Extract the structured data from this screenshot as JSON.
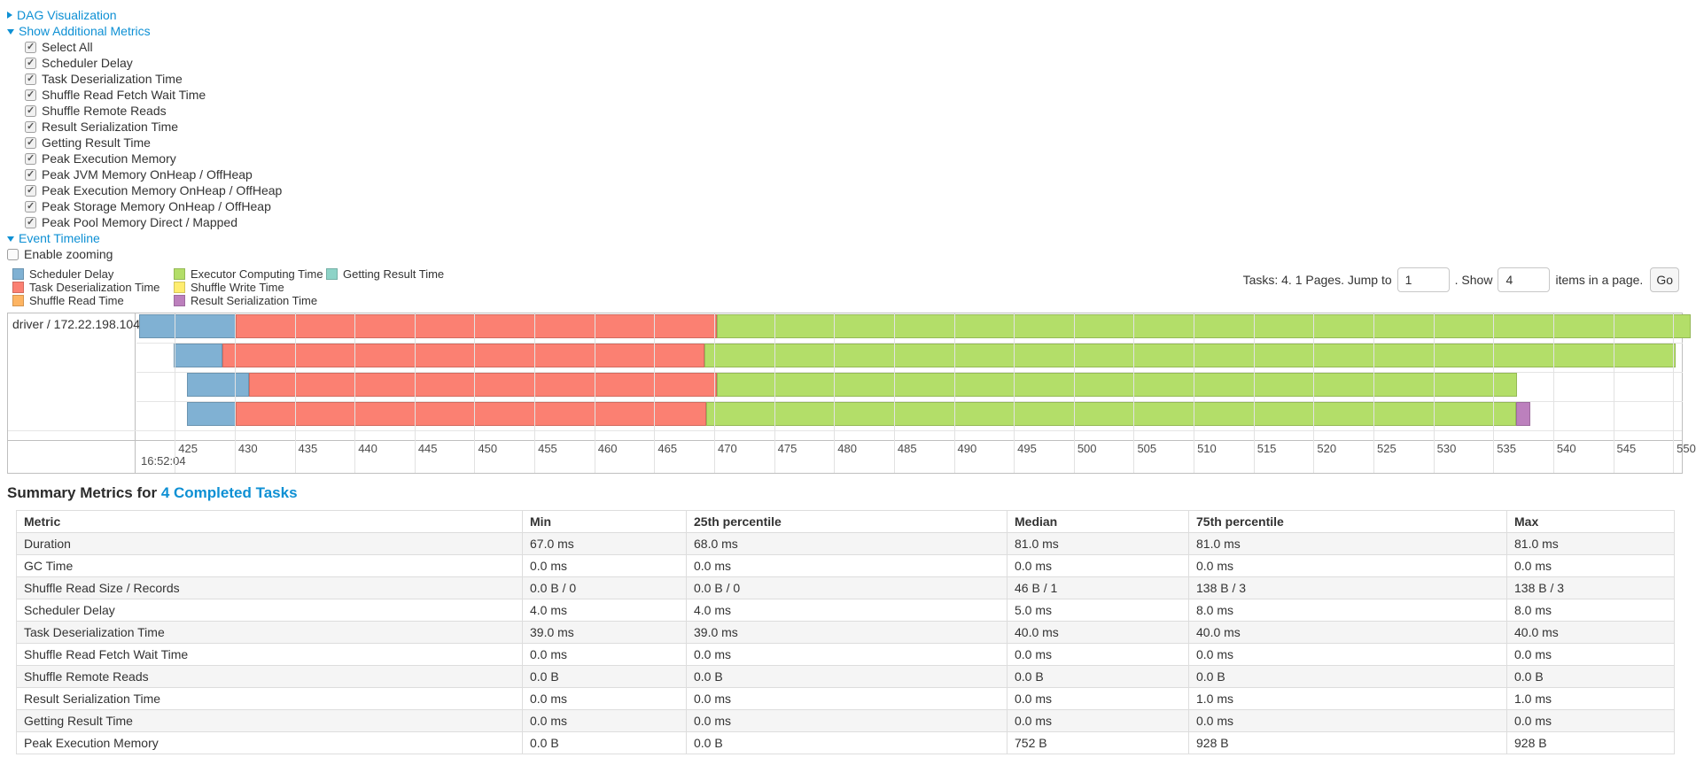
{
  "colors": {
    "link": "#0e90d4",
    "panel_border": "#bfbfbf",
    "grid_minor": "#e2e2e2",
    "axis_text": "#4d4d4d",
    "metric_colors": {
      "scheduler_delay": {
        "label": "Scheduler Delay",
        "fill": "#80B1D3",
        "stroke": "#6B94B0"
      },
      "task_deserialization": {
        "label": "Task Deserialization Time",
        "fill": "#FB8072",
        "stroke": "#D26B5F"
      },
      "shuffle_read": {
        "label": "Shuffle Read Time",
        "fill": "#FDB462",
        "stroke": "#D39651"
      },
      "executor_computing": {
        "label": "Executor Computing Time",
        "fill": "#B3DE69",
        "stroke": "#95B957"
      },
      "shuffle_write": {
        "label": "Shuffle Write Time",
        "fill": "#FFED6F",
        "stroke": "#D5C65C"
      },
      "result_serialization": {
        "label": "Result Serialization Time",
        "fill": "#BC80BD",
        "stroke": "#9D6B9E"
      },
      "getting_result": {
        "label": "Getting Result Time",
        "fill": "#8DD3C7",
        "stroke": "#75B0A6"
      }
    }
  },
  "controls": {
    "dag": {
      "label": "DAG Visualization",
      "expanded": false
    },
    "metrics": {
      "label": "Show Additional Metrics",
      "expanded": true,
      "all_checked": true,
      "items": [
        "Select All",
        "Scheduler Delay",
        "Task Deserialization Time",
        "Shuffle Read Fetch Wait Time",
        "Shuffle Remote Reads",
        "Result Serialization Time",
        "Getting Result Time",
        "Peak Execution Memory",
        "Peak JVM Memory OnHeap / OffHeap",
        "Peak Execution Memory OnHeap / OffHeap",
        "Peak Storage Memory OnHeap / OffHeap",
        "Peak Pool Memory Direct / Mapped"
      ]
    },
    "timeline": {
      "label": "Event Timeline",
      "expanded": true
    },
    "enable_zooming": {
      "label": "Enable zooming",
      "checked": false
    }
  },
  "legend": {
    "columns": [
      [
        "scheduler_delay",
        "task_deserialization",
        "shuffle_read"
      ],
      [
        "executor_computing",
        "shuffle_write",
        "result_serialization"
      ],
      [
        "getting_result"
      ]
    ]
  },
  "pagination": {
    "text_before": "Tasks: 4. 1 Pages. Jump to",
    "jump_value": "1",
    "text_mid": ". Show",
    "show_value": "4",
    "text_after": "items in a page.",
    "go_label": "Go"
  },
  "chart_data": {
    "type": "timeline",
    "group_label": "driver / 172.22.198.104",
    "axis": {
      "major_label": "16:52:04",
      "unit": "ms after 16:52:04",
      "domain_start": 421.8,
      "domain_end": 550.8,
      "tick_start": 425,
      "tick_end": 550,
      "tick_step": 5
    },
    "tasks": [
      {
        "segments": [
          {
            "metric": "scheduler_delay",
            "start": 422.0,
            "end": 430.1
          },
          {
            "metric": "task_deserialization",
            "start": 430.1,
            "end": 470.2
          },
          {
            "metric": "executor_computing",
            "start": 470.2,
            "end": 551.5
          }
        ]
      },
      {
        "segments": [
          {
            "metric": "scheduler_delay",
            "start": 424.9,
            "end": 429.0
          },
          {
            "metric": "task_deserialization",
            "start": 429.0,
            "end": 469.2
          },
          {
            "metric": "executor_computing",
            "start": 469.2,
            "end": 550.2
          }
        ]
      },
      {
        "segments": [
          {
            "metric": "scheduler_delay",
            "start": 426.0,
            "end": 431.2
          },
          {
            "metric": "task_deserialization",
            "start": 431.2,
            "end": 470.2
          },
          {
            "metric": "executor_computing",
            "start": 470.2,
            "end": 537.0
          }
        ]
      },
      {
        "segments": [
          {
            "metric": "scheduler_delay",
            "start": 426.0,
            "end": 430.1
          },
          {
            "metric": "task_deserialization",
            "start": 430.1,
            "end": 469.3
          },
          {
            "metric": "executor_computing",
            "start": 469.3,
            "end": 536.9
          },
          {
            "metric": "result_serialization",
            "start": 536.9,
            "end": 538.1
          }
        ]
      }
    ]
  },
  "summary": {
    "title_prefix": "Summary Metrics for ",
    "title_link": "4 Completed Tasks",
    "headers": [
      "Metric",
      "Min",
      "25th percentile",
      "Median",
      "75th percentile",
      "Max"
    ],
    "rows": [
      [
        "Duration",
        "67.0 ms",
        "68.0 ms",
        "81.0 ms",
        "81.0 ms",
        "81.0 ms"
      ],
      [
        "GC Time",
        "0.0 ms",
        "0.0 ms",
        "0.0 ms",
        "0.0 ms",
        "0.0 ms"
      ],
      [
        "Shuffle Read Size / Records",
        "0.0 B / 0",
        "0.0 B / 0",
        "46 B / 1",
        "138 B / 3",
        "138 B / 3"
      ],
      [
        "Scheduler Delay",
        "4.0 ms",
        "4.0 ms",
        "5.0 ms",
        "8.0 ms",
        "8.0 ms"
      ],
      [
        "Task Deserialization Time",
        "39.0 ms",
        "39.0 ms",
        "40.0 ms",
        "40.0 ms",
        "40.0 ms"
      ],
      [
        "Shuffle Read Fetch Wait Time",
        "0.0 ms",
        "0.0 ms",
        "0.0 ms",
        "0.0 ms",
        "0.0 ms"
      ],
      [
        "Shuffle Remote Reads",
        "0.0 B",
        "0.0 B",
        "0.0 B",
        "0.0 B",
        "0.0 B"
      ],
      [
        "Result Serialization Time",
        "0.0 ms",
        "0.0 ms",
        "0.0 ms",
        "1.0 ms",
        "1.0 ms"
      ],
      [
        "Getting Result Time",
        "0.0 ms",
        "0.0 ms",
        "0.0 ms",
        "0.0 ms",
        "0.0 ms"
      ],
      [
        "Peak Execution Memory",
        "0.0 B",
        "0.0 B",
        "752 B",
        "928 B",
        "928 B"
      ]
    ]
  }
}
